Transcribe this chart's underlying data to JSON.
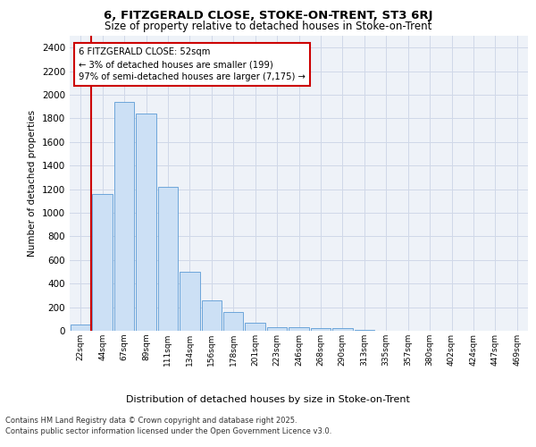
{
  "title1": "6, FITZGERALD CLOSE, STOKE-ON-TRENT, ST3 6RJ",
  "title2": "Size of property relative to detached houses in Stoke-on-Trent",
  "xlabel": "Distribution of detached houses by size in Stoke-on-Trent",
  "ylabel": "Number of detached properties",
  "categories": [
    "22sqm",
    "44sqm",
    "67sqm",
    "89sqm",
    "111sqm",
    "134sqm",
    "156sqm",
    "178sqm",
    "201sqm",
    "223sqm",
    "246sqm",
    "268sqm",
    "290sqm",
    "313sqm",
    "335sqm",
    "357sqm",
    "380sqm",
    "402sqm",
    "424sqm",
    "447sqm",
    "469sqm"
  ],
  "values": [
    55,
    1160,
    1940,
    1840,
    1220,
    500,
    260,
    160,
    70,
    30,
    30,
    25,
    20,
    5,
    2,
    2,
    1,
    1,
    1,
    1,
    1
  ],
  "bar_color": "#cce0f5",
  "bar_edge_color": "#5b9bd5",
  "grid_color": "#d0d8e8",
  "bg_color": "#eef2f8",
  "annotation_line1": "6 FITZGERALD CLOSE: 52sqm",
  "annotation_line2": "← 3% of detached houses are smaller (199)",
  "annotation_line3": "97% of semi-detached houses are larger (7,175) →",
  "annotation_box_color": "#ffffff",
  "annotation_box_edge": "#cc0000",
  "vline_color": "#cc0000",
  "ylim": [
    0,
    2500
  ],
  "yticks": [
    0,
    200,
    400,
    600,
    800,
    1000,
    1200,
    1400,
    1600,
    1800,
    2000,
    2200,
    2400
  ],
  "footer1": "Contains HM Land Registry data © Crown copyright and database right 2025.",
  "footer2": "Contains public sector information licensed under the Open Government Licence v3.0."
}
